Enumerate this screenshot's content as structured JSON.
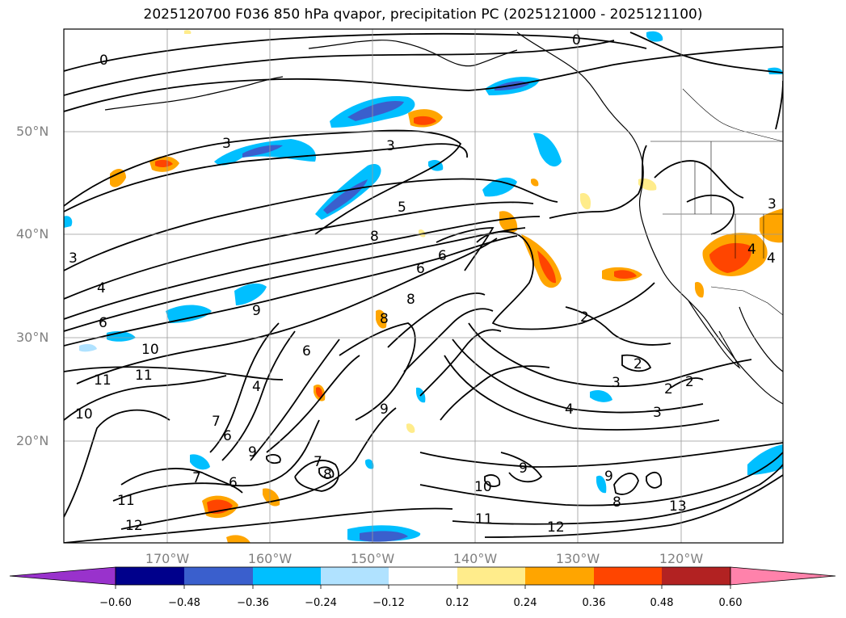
{
  "title": "2025120700 F036 850 hPa qvapor, precipitation PC (2025121000 - 2025121100)",
  "lat_labels": [
    "50°N",
    "40°N",
    "30°N",
    "20°N"
  ],
  "lon_labels": [
    "170°W",
    "160°W",
    "150°W",
    "140°W",
    "130°W",
    "120°W"
  ],
  "colorbar": {
    "ticks": [
      "−0.60",
      "−0.48",
      "−0.36",
      "−0.24",
      "−0.12",
      "0.12",
      "0.24",
      "0.36",
      "0.48",
      "0.60"
    ],
    "colors": [
      "#9932cc",
      "#00008b",
      "#3a5fcd",
      "#00bfff",
      "#b0e2ff",
      "#ffffff",
      "#ffec8b",
      "#ffa500",
      "#ff4500",
      "#b22222",
      "#ff82ab"
    ]
  },
  "contour_labels": [
    "0",
    "0",
    "3",
    "3",
    "3",
    "4",
    "5",
    "6",
    "6",
    "6",
    "8",
    "8",
    "8",
    "9",
    "9",
    "10",
    "11",
    "11",
    "10",
    "7",
    "6",
    "6",
    "7",
    "8",
    "9",
    "9",
    "9",
    "10",
    "11",
    "12",
    "11",
    "12",
    "13",
    "2",
    "2",
    "3",
    "2",
    "2",
    "3",
    "4",
    "8",
    "4",
    "4",
    "3",
    "6",
    "7",
    "4"
  ]
}
